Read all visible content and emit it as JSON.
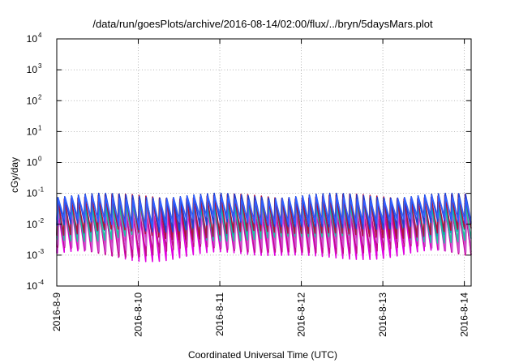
{
  "chart_data": {
    "type": "line",
    "title": "/data/run/goesPlots/archive/2016-08-14/02:00/flux/../bryn/5daysMars.plot",
    "xlabel": "Coordinated Universal Time (UTC)",
    "ylabel": "cGy/day",
    "yscale": "log",
    "ylim": [
      0.0001,
      10000
    ],
    "y_ticks": [
      {
        "base": "10",
        "exp": "-4"
      },
      {
        "base": "10",
        "exp": "-3"
      },
      {
        "base": "10",
        "exp": "-2"
      },
      {
        "base": "10",
        "exp": "-1"
      },
      {
        "base": "10",
        "exp": "0"
      },
      {
        "base": "10",
        "exp": "1"
      },
      {
        "base": "10",
        "exp": "2"
      },
      {
        "base": "10",
        "exp": "3"
      },
      {
        "base": "10",
        "exp": "4"
      }
    ],
    "xlim": [
      "2016-08-09T00:00",
      "2016-08-14T02:00"
    ],
    "x_ticks": [
      "2016-8-9",
      "2016-8-10",
      "2016-8-11",
      "2016-8-12",
      "2016-8-13",
      "2016-8-14"
    ],
    "grid": true,
    "legend": "none",
    "period_hours": 2,
    "series": [
      {
        "color": "#e000e0",
        "peak": 0.03,
        "trough": 0.001,
        "phase": 0.1
      },
      {
        "color": "#c0108a",
        "peak": 0.025,
        "trough": 0.0014,
        "phase": 0.16
      },
      {
        "color": "#d050d0",
        "peak": 0.035,
        "trough": 0.002,
        "phase": 0.22
      },
      {
        "color": "#20c0a0",
        "peak": 0.045,
        "trough": 0.004,
        "phase": 0.05
      },
      {
        "color": "#00aaaa",
        "peak": 0.06,
        "trough": 0.006,
        "phase": 0.0
      },
      {
        "color": "#b01040",
        "peak": 0.08,
        "trough": 0.005,
        "phase": 0.02
      },
      {
        "color": "#2040d0",
        "peak": 0.085,
        "trough": 0.009,
        "phase": 0.08
      },
      {
        "color": "#3060ff",
        "peak": 0.07,
        "trough": 0.012,
        "phase": 0.12
      }
    ]
  }
}
